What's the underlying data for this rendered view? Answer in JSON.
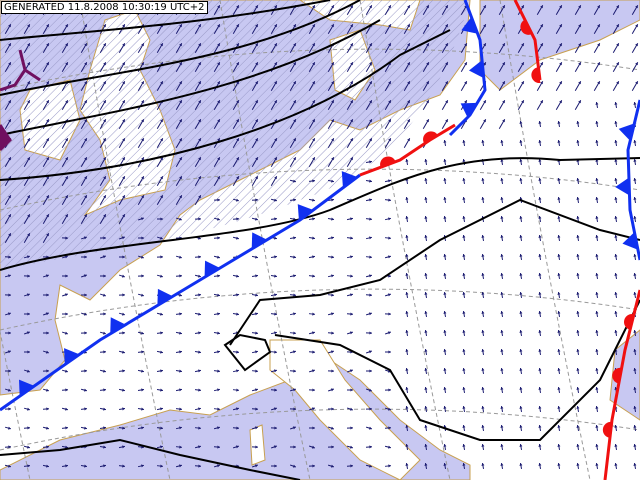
{
  "header": {
    "stamp": "GENERATED 11.8.2008 10:30:19 UTC+2"
  }
}
